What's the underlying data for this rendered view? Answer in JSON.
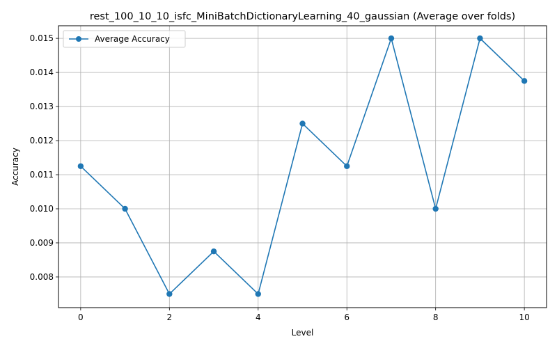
{
  "chart_data": {
    "type": "line",
    "title": "rest_100_10_10_isfc_MiniBatchDictionaryLearning_40_gaussian (Average over folds)",
    "xlabel": "Level",
    "ylabel": "Accuracy",
    "x": [
      0,
      1,
      2,
      3,
      4,
      5,
      6,
      7,
      8,
      9,
      10
    ],
    "series": [
      {
        "name": "Average Accuracy",
        "color": "#1f77b4",
        "marker": "circle",
        "values": [
          0.01125,
          0.01,
          0.0075,
          0.00875,
          0.0075,
          0.0125,
          0.01125,
          0.015,
          0.01,
          0.015,
          0.01375
        ]
      }
    ],
    "xlim": [
      -0.5,
      10.5
    ],
    "ylim": [
      0.0071,
      0.01537
    ],
    "xticks": [
      "0",
      "2",
      "4",
      "6",
      "8",
      "10"
    ],
    "yticks": [
      "0.008",
      "0.009",
      "0.010",
      "0.011",
      "0.012",
      "0.013",
      "0.014",
      "0.015"
    ],
    "grid": true,
    "legend": "upper-left"
  }
}
